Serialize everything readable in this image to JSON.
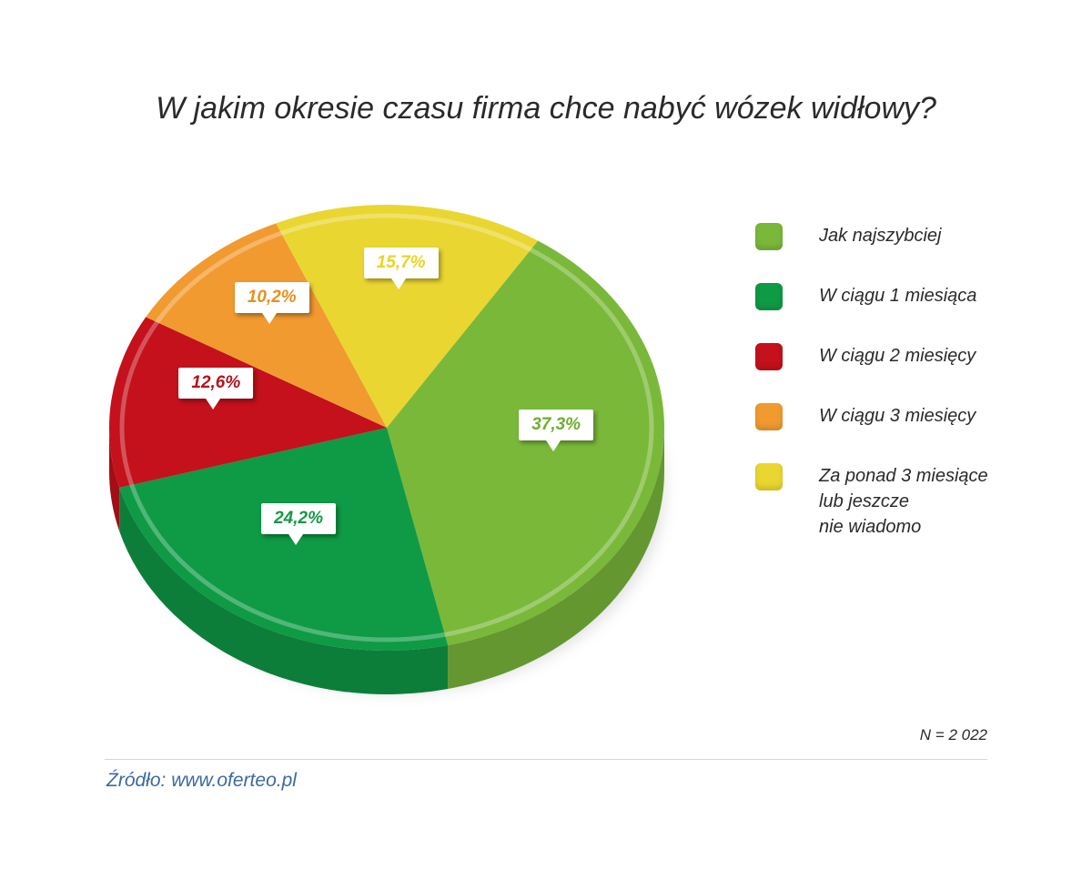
{
  "title": "W jakim okresie czasu firma chce nabyć wózek widłowy?",
  "chart_data": {
    "type": "pie",
    "title": "W jakim okresie czasu firma chce nabyć wózek widłowy?",
    "slices": [
      {
        "label": "Jak najszybciej",
        "value": 37.3,
        "display": "37,3%",
        "color": "#7ab83a",
        "label_color": "#6fae2c"
      },
      {
        "label": "W ciągu 1 miesiąca",
        "value": 24.2,
        "display": "24,2%",
        "color": "#0f9a45",
        "label_color": "#129a45"
      },
      {
        "label": "W ciągu 2 miesięcy",
        "value": 12.6,
        "display": "12,6%",
        "color": "#c4111b",
        "label_color": "#b4121c"
      },
      {
        "label": "W ciągu 3 miesięcy",
        "value": 10.2,
        "display": "10,2%",
        "color": "#f19a30",
        "label_color": "#e8901f"
      },
      {
        "label": "Za ponad 3 miesiące\nlub jeszcze\nnie wiadomo",
        "value": 15.7,
        "display": "15,7%",
        "color": "#ead631",
        "label_color": "#e8d623"
      }
    ],
    "legend_placement": "right"
  },
  "n_label": "N = 2 022",
  "source": "Źródło: www.oferteo.pl"
}
